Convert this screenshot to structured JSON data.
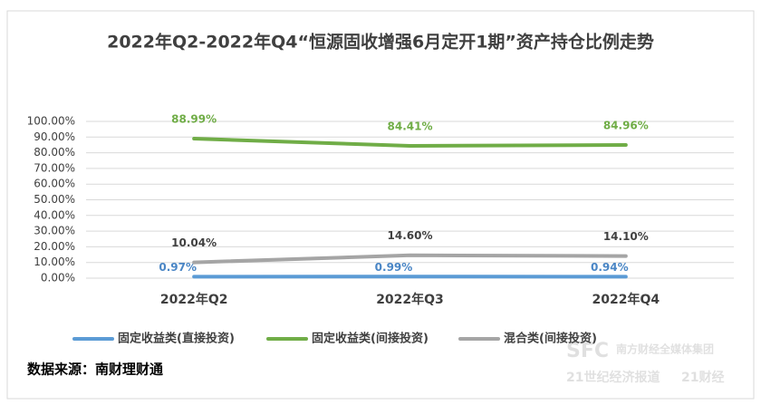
{
  "chart_data": {
    "type": "line",
    "title": "2022年Q2-2022年Q4“恒源固收增强6月定开1期”资产持仓比例走势",
    "categories": [
      "2022年Q2",
      "2022年Q3",
      "2022年Q4"
    ],
    "series": [
      {
        "name": "固定收益类(直接投资)",
        "color": "#5b9bd5",
        "label_color": "#4a86c5",
        "values": [
          0.97,
          0.99,
          0.94
        ],
        "value_labels": [
          "0.97%",
          "0.99%",
          "0.94%"
        ]
      },
      {
        "name": "固定收益类(间接投资)",
        "color": "#70ad47",
        "label_color": "#70ad47",
        "values": [
          88.99,
          84.41,
          84.96
        ],
        "value_labels": [
          "88.99%",
          "84.41%",
          "84.96%"
        ]
      },
      {
        "name": "混合类(间接投资)",
        "color": "#a5a5a5",
        "label_color": "#404040",
        "values": [
          10.04,
          14.6,
          14.1
        ],
        "value_labels": [
          "10.04%",
          "14.60%",
          "14.10%"
        ]
      }
    ],
    "ylim": [
      0,
      100
    ],
    "yticks": [
      {
        "value": 0,
        "label": "0.00%"
      },
      {
        "value": 10,
        "label": "10.00%"
      },
      {
        "value": 20,
        "label": "20.00%"
      },
      {
        "value": 30,
        "label": "30.00%"
      },
      {
        "value": 40,
        "label": "40.00%"
      },
      {
        "value": 50,
        "label": "50.00%"
      },
      {
        "value": 60,
        "label": "60.00%"
      },
      {
        "value": 70,
        "label": "70.00%"
      },
      {
        "value": 80,
        "label": "80.00%"
      },
      {
        "value": 90,
        "label": "90.00%"
      },
      {
        "value": 100,
        "label": "100.00%"
      }
    ],
    "grid": true,
    "legend": "bottom",
    "source": "数据来源：南财理财通",
    "watermark": [
      "SFC",
      "南方财经全媒体集团",
      "21世纪经济报道",
      "21财经"
    ]
  }
}
